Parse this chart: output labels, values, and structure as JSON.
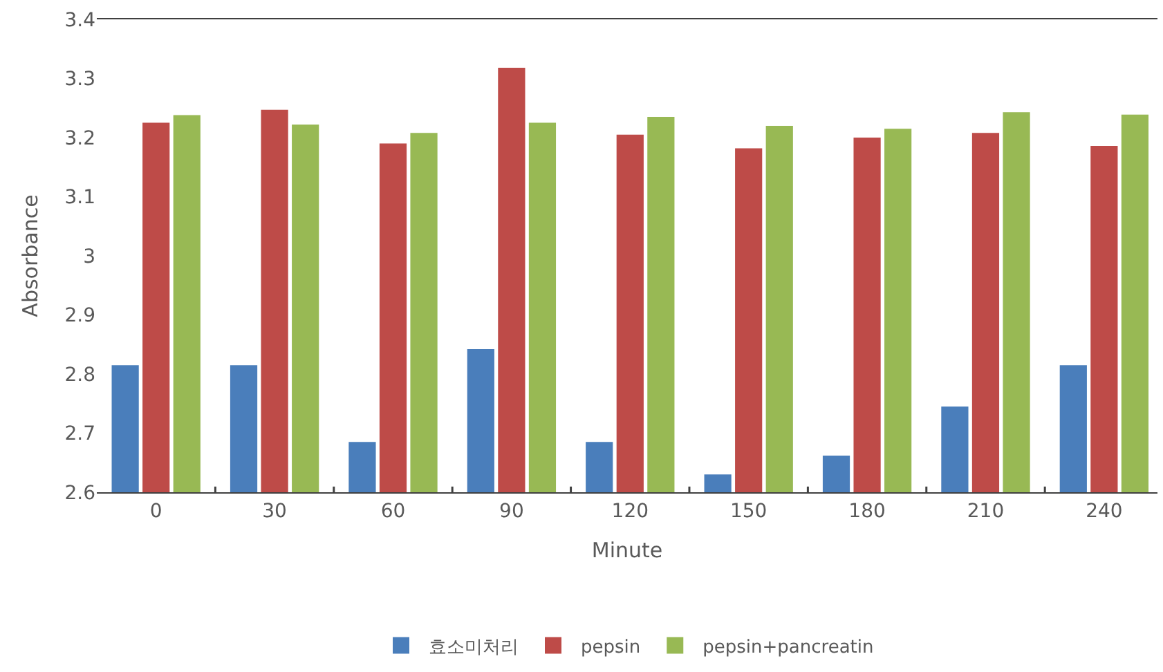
{
  "chart_data": {
    "type": "bar",
    "xlabel": "Minute",
    "ylabel": "Absorbance",
    "categories": [
      "0",
      "30",
      "60",
      "90",
      "120",
      "150",
      "180",
      "210",
      "240"
    ],
    "series": [
      {
        "name": "효소미처리",
        "color": "#4a7ebb",
        "values": [
          2.815,
          2.815,
          2.685,
          2.842,
          2.685,
          2.63,
          2.662,
          2.745,
          2.815
        ]
      },
      {
        "name": "pepsin",
        "color": "#be4b48",
        "values": [
          3.225,
          3.247,
          3.19,
          3.318,
          3.205,
          3.182,
          3.2,
          3.208,
          3.186
        ]
      },
      {
        "name": "pepsin+pancreatin",
        "color": "#98b954",
        "values": [
          3.238,
          3.222,
          3.208,
          3.225,
          3.235,
          3.22,
          3.215,
          3.243,
          3.239
        ]
      }
    ],
    "ylim": [
      2.6,
      3.4
    ],
    "yticks": [
      2.6,
      2.7,
      2.8,
      2.9,
      3,
      3.1,
      3.2,
      3.3,
      3.4
    ],
    "legend": "bottom"
  }
}
